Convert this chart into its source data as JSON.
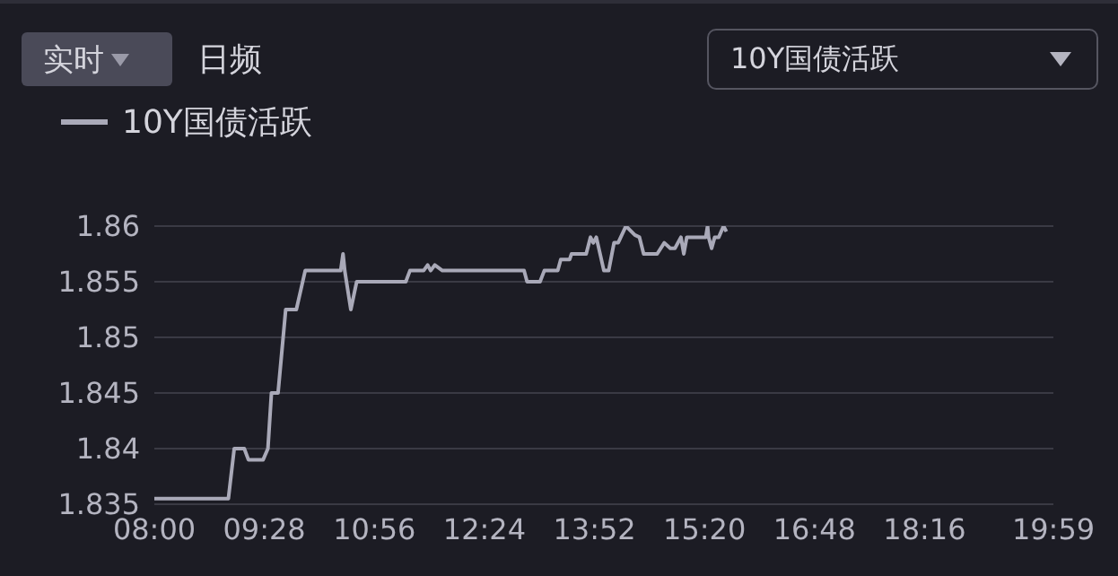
{
  "chart_data": {
    "type": "line",
    "annotations": [
      "实时",
      "日频",
      "10Y国债活跃"
    ],
    "x": [
      8,
      8.987,
      9.065,
      9.199,
      9.254,
      9.45,
      9.514,
      9.561,
      9.649,
      9.751,
      9.893,
      10.011,
      10.484,
      10.515,
      10.538,
      10.619,
      10.697,
      11.352,
      11.407,
      11.589,
      11.643,
      11.683,
      11.738,
      11.84,
      12.116,
      12.928,
      12.968,
      13.141,
      13.198,
      13.377,
      13.417,
      13.536,
      13.56,
      13.756,
      13.813,
      13.851,
      13.891,
      13.992,
      14.056,
      14.127,
      14.182,
      14.286,
      14.404,
      14.466,
      14.522,
      14.702,
      14.797,
      14.877,
      14.939,
      15.019,
      15.057,
      15.097,
      15.35,
      15.374,
      15.388,
      15.428,
      15.469,
      15.523,
      15.587,
      15.625
    ],
    "series": [
      {
        "name": "10Y国债活跃",
        "color": "#a9a9b8",
        "values": [
          1.8355,
          1.8355,
          1.84,
          1.84,
          1.839,
          1.839,
          1.84,
          1.845,
          1.845,
          1.8525,
          1.8525,
          1.856,
          1.856,
          1.8575,
          1.856,
          1.8525,
          1.855,
          1.855,
          1.856,
          1.856,
          1.8565,
          1.856,
          1.8565,
          1.856,
          1.856,
          1.856,
          1.855,
          1.855,
          1.856,
          1.856,
          1.857,
          1.857,
          1.8575,
          1.8575,
          1.859,
          1.8585,
          1.859,
          1.856,
          1.856,
          1.8585,
          1.8585,
          1.86,
          1.8592,
          1.859,
          1.8575,
          1.8575,
          1.8585,
          1.858,
          1.858,
          1.859,
          1.8575,
          1.859,
          1.859,
          1.86,
          1.859,
          1.858,
          1.859,
          1.859,
          1.86,
          1.8595
        ]
      }
    ],
    "xlim": [
      8,
      19.9833
    ],
    "xticks": [
      {
        "value": 8,
        "label": "08:00"
      },
      {
        "value": 9.4667,
        "label": "09:28"
      },
      {
        "value": 10.9333,
        "label": "10:56"
      },
      {
        "value": 12.4,
        "label": "12:24"
      },
      {
        "value": 13.8667,
        "label": "13:52"
      },
      {
        "value": 15.3333,
        "label": "15:20"
      },
      {
        "value": 16.8,
        "label": "16:48"
      },
      {
        "value": 18.2667,
        "label": "18:16"
      },
      {
        "value": 19.9833,
        "label": "19:59"
      }
    ],
    "ylim": [
      1.835,
      1.86
    ],
    "yticks": [
      1.835,
      1.84,
      1.845,
      1.85,
      1.855,
      1.86
    ],
    "grid": "y",
    "legend": "top left",
    "marker": "none",
    "line_style": "solid"
  }
}
